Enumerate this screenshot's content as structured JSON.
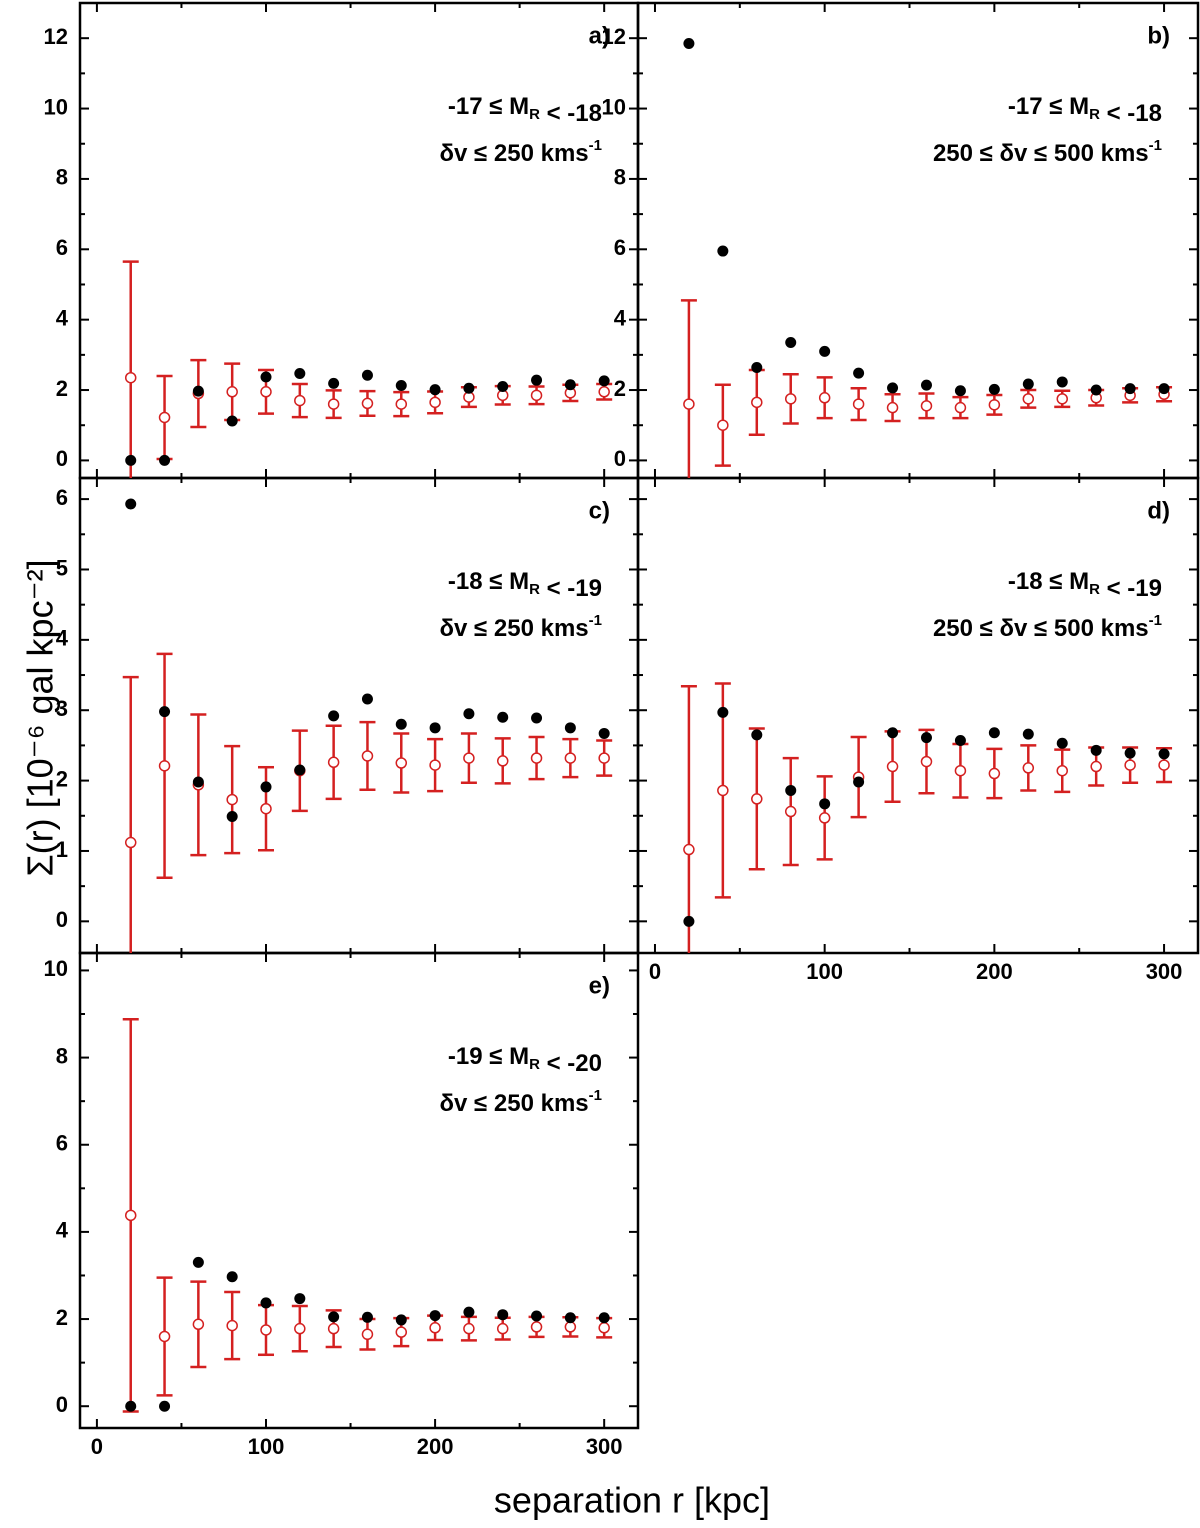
{
  "figure": {
    "xlabel": "separation r [kpc]",
    "ylabel": "Σ(r) [10⁻⁶ gal kpc⁻²]"
  },
  "colors": {
    "observed": "#000000",
    "random": "#d42020",
    "axes": "#000000"
  },
  "chart_data": [
    {
      "type": "scatter",
      "id": "a",
      "label": "a)",
      "mag_range": "-17 ≤ M_R < -18",
      "dv_range": "δv ≤ 250 kms⁻¹",
      "xlim": [
        -10,
        320
      ],
      "ylim": [
        -0.5,
        13
      ],
      "yticks": [
        0,
        2,
        4,
        6,
        8,
        10,
        12
      ],
      "x": [
        20,
        40,
        60,
        80,
        100,
        120,
        140,
        160,
        180,
        200,
        220,
        240,
        260,
        280,
        300
      ],
      "series": [
        {
          "name": "observed",
          "values": [
            0,
            0,
            1.97,
            1.12,
            2.37,
            2.47,
            2.19,
            2.42,
            2.13,
            2.01,
            2.05,
            2.1,
            2.28,
            2.15,
            2.26
          ]
        },
        {
          "name": "random mean",
          "values": [
            2.35,
            1.22,
            1.9,
            1.95,
            1.95,
            1.7,
            1.6,
            1.62,
            1.6,
            1.65,
            1.8,
            1.85,
            1.85,
            1.92,
            1.95
          ]
        },
        {
          "name": "random error",
          "values": [
            3.3,
            1.18,
            0.95,
            0.8,
            0.62,
            0.47,
            0.39,
            0.35,
            0.34,
            0.31,
            0.28,
            0.26,
            0.25,
            0.23,
            0.22
          ]
        }
      ]
    },
    {
      "type": "scatter",
      "id": "b",
      "label": "b)",
      "mag_range": "-17 ≤ M_R < -18",
      "dv_range": "250 ≤ δv ≤ 500 kms⁻¹",
      "xlim": [
        -10,
        320
      ],
      "ylim": [
        -0.5,
        13
      ],
      "yticks": [
        0,
        2,
        4,
        6,
        8,
        10,
        12
      ],
      "x": [
        20,
        40,
        60,
        80,
        100,
        120,
        140,
        160,
        180,
        200,
        220,
        240,
        260,
        280,
        300
      ],
      "series": [
        {
          "name": "observed",
          "values": [
            11.85,
            5.95,
            2.64,
            3.35,
            3.1,
            2.48,
            2.06,
            2.14,
            1.98,
            2.02,
            2.17,
            2.23,
            2.0,
            2.04,
            2.04
          ]
        },
        {
          "name": "random mean",
          "values": [
            1.6,
            1.0,
            1.65,
            1.75,
            1.78,
            1.6,
            1.5,
            1.55,
            1.5,
            1.58,
            1.75,
            1.75,
            1.78,
            1.85,
            1.88
          ]
        },
        {
          "name": "random error",
          "values": [
            2.95,
            1.15,
            0.92,
            0.7,
            0.58,
            0.45,
            0.38,
            0.35,
            0.3,
            0.28,
            0.25,
            0.23,
            0.22,
            0.2,
            0.2
          ]
        }
      ]
    },
    {
      "type": "scatter",
      "id": "c",
      "label": "c)",
      "mag_range": "-18 ≤ M_R < -19",
      "dv_range": "δv ≤ 250 kms⁻¹",
      "xlim": [
        -10,
        320
      ],
      "ylim": [
        -0.45,
        6.3
      ],
      "yticks": [
        0,
        1,
        2,
        3,
        4,
        5,
        6
      ],
      "x": [
        20,
        40,
        60,
        80,
        100,
        120,
        140,
        160,
        180,
        200,
        220,
        240,
        260,
        280,
        300
      ],
      "series": [
        {
          "name": "observed",
          "values": [
            5.93,
            2.98,
            1.98,
            1.49,
            1.91,
            2.15,
            2.92,
            3.16,
            2.8,
            2.75,
            2.95,
            2.9,
            2.89,
            2.75,
            2.67
          ]
        },
        {
          "name": "random mean",
          "values": [
            1.12,
            2.21,
            1.94,
            1.73,
            1.6,
            2.14,
            2.26,
            2.35,
            2.25,
            2.22,
            2.32,
            2.28,
            2.32,
            2.32,
            2.32
          ]
        },
        {
          "name": "random error",
          "values": [
            2.35,
            1.59,
            1.0,
            0.76,
            0.59,
            0.57,
            0.52,
            0.48,
            0.42,
            0.37,
            0.35,
            0.32,
            0.3,
            0.27,
            0.25
          ]
        }
      ]
    },
    {
      "type": "scatter",
      "id": "d",
      "label": "d)",
      "mag_range": "-18 ≤ M_R < -19",
      "dv_range": "250 ≤ δv ≤ 500 kms⁻¹",
      "xlim": [
        -10,
        320
      ],
      "ylim": [
        -0.45,
        6.3
      ],
      "yticks": [],
      "x": [
        20,
        40,
        60,
        80,
        100,
        120,
        140,
        160,
        180,
        200,
        220,
        240,
        260,
        280,
        300
      ],
      "series": [
        {
          "name": "observed",
          "values": [
            0,
            2.97,
            2.65,
            1.86,
            1.67,
            1.98,
            2.68,
            2.61,
            2.57,
            2.68,
            2.66,
            2.53,
            2.43,
            2.39,
            2.38
          ]
        },
        {
          "name": "random mean",
          "values": [
            1.02,
            1.86,
            1.74,
            1.56,
            1.47,
            2.05,
            2.2,
            2.27,
            2.14,
            2.1,
            2.18,
            2.14,
            2.2,
            2.22,
            2.22
          ]
        },
        {
          "name": "random error",
          "values": [
            2.32,
            1.52,
            1.0,
            0.76,
            0.59,
            0.57,
            0.5,
            0.45,
            0.38,
            0.35,
            0.32,
            0.3,
            0.27,
            0.25,
            0.24
          ]
        }
      ]
    },
    {
      "type": "scatter",
      "id": "e",
      "label": "e)",
      "mag_range": "-19 ≤ M_R < -20",
      "dv_range": "δv ≤ 250 kms⁻¹",
      "xlim": [
        -10,
        320
      ],
      "ylim": [
        -0.5,
        10.4
      ],
      "yticks": [
        0,
        2,
        4,
        6,
        8,
        10
      ],
      "xticks": [
        0,
        100,
        200,
        300
      ],
      "x": [
        20,
        40,
        60,
        80,
        100,
        120,
        140,
        160,
        180,
        200,
        220,
        240,
        260,
        280,
        300
      ],
      "series": [
        {
          "name": "observed",
          "values": [
            0,
            0,
            3.3,
            2.97,
            2.37,
            2.47,
            2.05,
            2.04,
            1.98,
            2.08,
            2.16,
            2.1,
            2.07,
            2.03,
            2.03
          ]
        },
        {
          "name": "random mean",
          "values": [
            4.38,
            1.6,
            1.88,
            1.85,
            1.75,
            1.78,
            1.78,
            1.65,
            1.7,
            1.8,
            1.78,
            1.78,
            1.82,
            1.82,
            1.8
          ]
        },
        {
          "name": "random error",
          "values": [
            4.5,
            1.35,
            0.98,
            0.77,
            0.57,
            0.52,
            0.42,
            0.35,
            0.32,
            0.28,
            0.27,
            0.25,
            0.23,
            0.22,
            0.22
          ]
        }
      ]
    }
  ],
  "bottom_axis_d": {
    "xticks": [
      0,
      100,
      200,
      300
    ]
  }
}
